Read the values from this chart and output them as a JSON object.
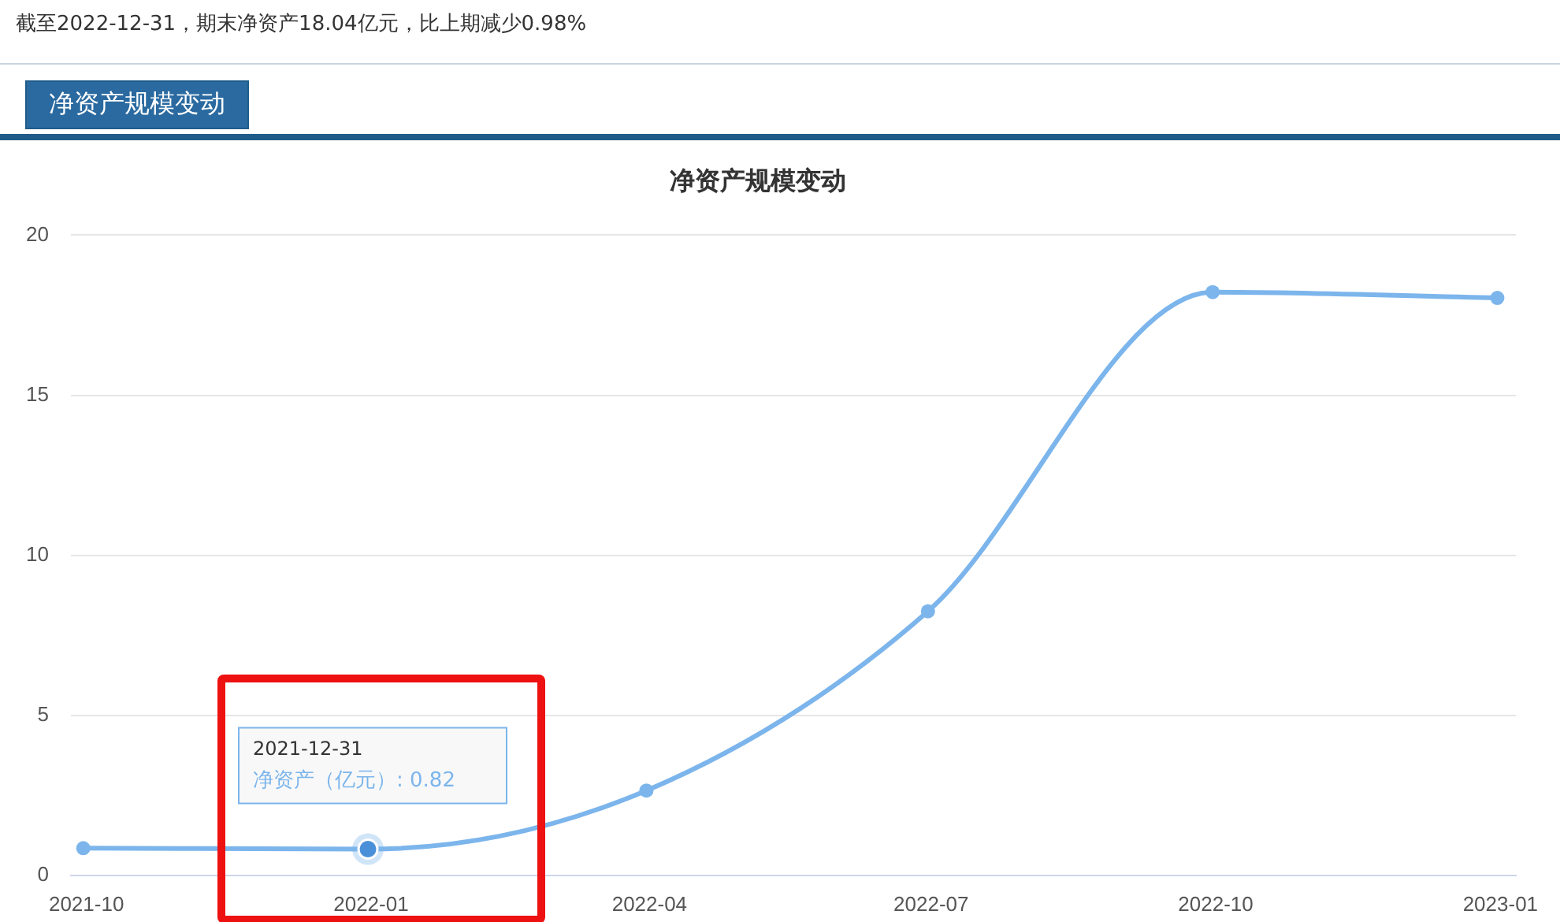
{
  "chart_data": {
    "type": "line",
    "title": "净资产规模变动",
    "annotations": [
      "截至2022-12-31，期末净资产18.04亿元，比上期减少0.98%",
      "净资产规模变动",
      {
        "text": "2021-12-31 净资产（亿元）: 0.82",
        "x": "2021-12-31",
        "y": 0.82
      }
    ],
    "x": [
      "2021-09-30",
      "2021-12-31",
      "2022-03-31",
      "2022-06-30",
      "2022-09-30",
      "2022-12-31"
    ],
    "series": [
      {
        "color": "#7cb5ec",
        "values": [
          0.85,
          0.82,
          2.65,
          8.25,
          18.22,
          18.04
        ]
      }
    ],
    "xlim": [
      "2021-09-26",
      "2023-01-06"
    ],
    "xticks": [
      {
        "value": "2021-10-01",
        "label": "2021-10"
      },
      {
        "value": "2022-01-01",
        "label": "2022-01"
      },
      {
        "value": "2022-04-01",
        "label": "2022-04"
      },
      {
        "value": "2022-07-01",
        "label": "2022-07"
      },
      {
        "value": "2022-10-01",
        "label": "2022-10"
      },
      {
        "value": "2023-01-01",
        "label": "2023-01"
      }
    ],
    "ylim": [
      0,
      20
    ],
    "yticks": [
      0,
      5,
      10,
      15,
      20
    ],
    "grid": "y",
    "legend": false,
    "marker": "circle",
    "line_style": "solid"
  }
}
